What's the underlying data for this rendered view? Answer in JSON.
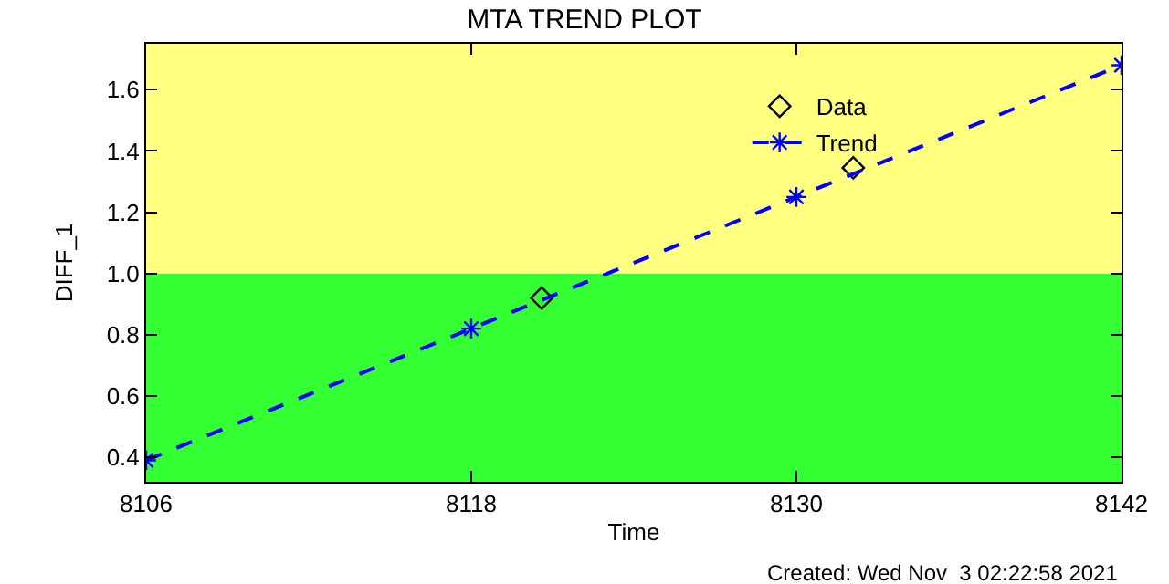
{
  "chart_data": {
    "type": "line",
    "title": "MTA TREND PLOT",
    "xlabel": "Time",
    "ylabel": "DIFF_1",
    "annotations": [
      "Created: Wed Nov  3 02:22:58 2021"
    ],
    "xlim": [
      8106,
      8142
    ],
    "xticks": [
      8106,
      8118,
      8130,
      8142
    ],
    "ylim": [
      0.32,
      1.75
    ],
    "yticks": [
      0.4,
      0.6,
      0.8,
      {
        "value": 1,
        "label": "1.0"
      },
      1.2,
      1.4,
      1.6
    ],
    "bands": [
      {
        "axis": "y",
        "from": 0.32,
        "to": 1.0,
        "color": "#33ff33"
      },
      {
        "axis": "y",
        "from": 1.0,
        "to": 1.75,
        "color": "#ffff80"
      }
    ],
    "grid": false,
    "legend": "top right",
    "series": [
      {
        "name": "Data",
        "type": "scatter",
        "color": "#000000",
        "marker": "diamond",
        "x": [
          8120.6,
          8132.1
        ],
        "values": [
          0.92,
          1.345
        ]
      },
      {
        "name": "Trend",
        "color": "#0000ff",
        "marker": "cross",
        "line_style": "dashed",
        "x": [
          8106,
          8118,
          8130,
          8142
        ],
        "values": [
          0.39,
          0.82,
          1.25,
          1.68
        ]
      }
    ]
  }
}
